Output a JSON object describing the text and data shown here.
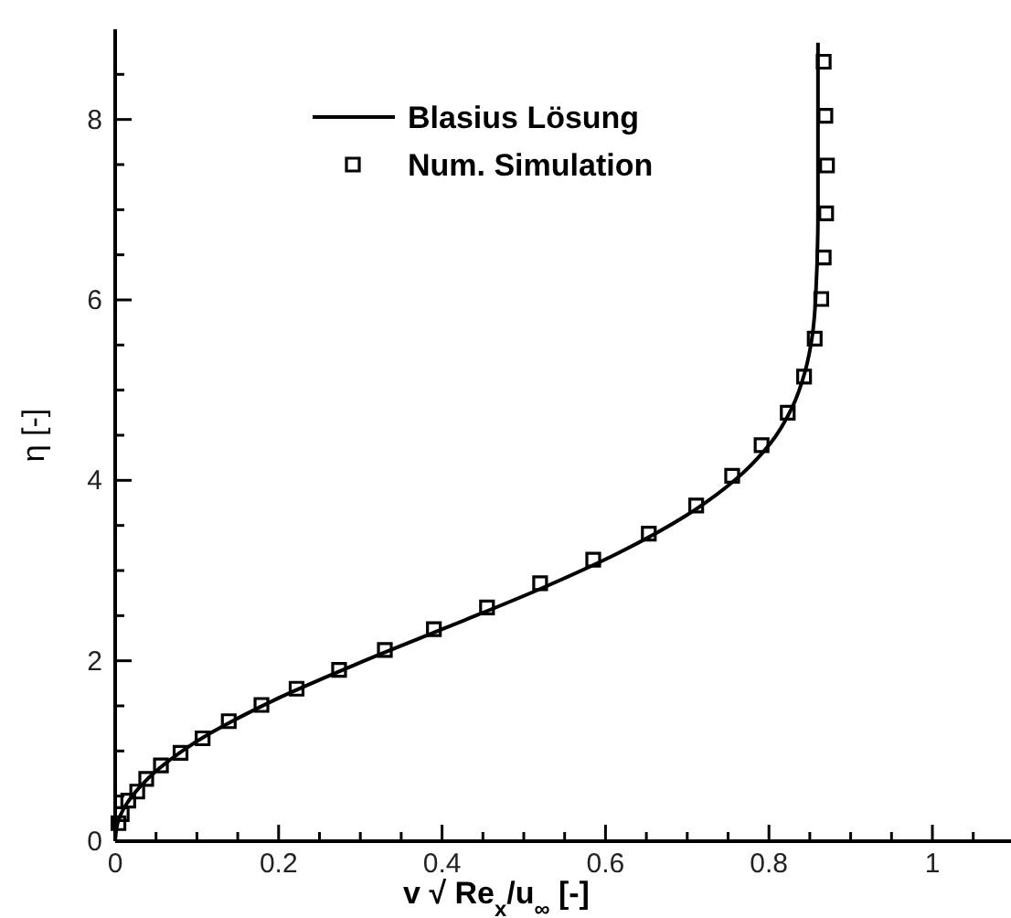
{
  "chart_data": {
    "type": "line",
    "xlabel": "v √ Re$_{x}$/u$_{∞}$ [-]",
    "ylabel": "η [-]",
    "xlim": [
      0,
      1.1
    ],
    "ylim": [
      0,
      9
    ],
    "xticks": [
      0,
      {
        "value": 0.05,
        "label": null
      },
      {
        "value": 0.1,
        "label": null
      },
      {
        "value": 0.15,
        "label": null
      },
      0.2,
      {
        "value": 0.25,
        "label": null
      },
      {
        "value": 0.3,
        "label": null
      },
      {
        "value": 0.35,
        "label": null
      },
      0.4,
      {
        "value": 0.45,
        "label": null
      },
      {
        "value": 0.5,
        "label": null
      },
      {
        "value": 0.55,
        "label": null
      },
      0.6,
      {
        "value": 0.65,
        "label": null
      },
      {
        "value": 0.7,
        "label": null
      },
      {
        "value": 0.75,
        "label": null
      },
      0.8,
      {
        "value": 0.85,
        "label": null
      },
      {
        "value": 0.9,
        "label": null
      },
      {
        "value": 0.95,
        "label": null
      },
      1,
      {
        "value": 1.05,
        "label": null
      }
    ],
    "yticks": [
      0,
      {
        "value": 0.5,
        "label": null
      },
      {
        "value": 1,
        "label": null
      },
      {
        "value": 1.5,
        "label": null
      },
      2,
      {
        "value": 2.5,
        "label": null
      },
      {
        "value": 3,
        "label": null
      },
      {
        "value": 3.5,
        "label": null
      },
      4,
      {
        "value": 4.5,
        "label": null
      },
      {
        "value": 5,
        "label": null
      },
      {
        "value": 5.5,
        "label": null
      },
      6,
      {
        "value": 6.5,
        "label": null
      },
      {
        "value": 7,
        "label": null
      },
      {
        "value": 7.5,
        "label": null
      },
      8,
      {
        "value": 8.5,
        "label": null
      }
    ],
    "grid": false,
    "legend": "top left",
    "series": [
      {
        "name": "Blasius Lösung",
        "color": "#000000",
        "marker": "none",
        "line_style": "solid",
        "x": [
          0,
          0.003,
          0.013,
          0.03,
          0.053,
          0.082,
          0.117,
          0.158,
          0.203,
          0.253,
          0.305,
          0.414,
          0.521,
          0.617,
          0.697,
          0.758,
          0.801,
          0.828,
          0.844,
          0.853,
          0.857,
          0.86,
          0.86
        ],
        "values": [
          0,
          0.2,
          0.4,
          0.6,
          0.8,
          1.0,
          1.2,
          1.4,
          1.6,
          1.8,
          2.0,
          2.4,
          2.8,
          3.2,
          3.6,
          4.0,
          4.4,
          4.8,
          5.2,
          5.6,
          6.0,
          7.0,
          8.85
        ]
      },
      {
        "name": "Num. Simulation",
        "type": "scatter",
        "color": "#000000",
        "marker": "square",
        "x": [
          0.004,
          0.008,
          0.016,
          0.027,
          0.038,
          0.056,
          0.08,
          0.107,
          0.139,
          0.179,
          0.222,
          0.274,
          0.33,
          0.39,
          0.455,
          0.52,
          0.585,
          0.653,
          0.711,
          0.755,
          0.791,
          0.823,
          0.843,
          0.856,
          0.864,
          0.867,
          0.87,
          0.871,
          0.869,
          0.867
        ],
        "values": [
          0.2,
          0.3,
          0.45,
          0.55,
          0.69,
          0.84,
          0.98,
          1.14,
          1.33,
          1.51,
          1.69,
          1.9,
          2.12,
          2.35,
          2.59,
          2.86,
          3.12,
          3.41,
          3.72,
          4.05,
          4.39,
          4.75,
          5.15,
          5.57,
          6.01,
          6.47,
          6.96,
          7.49,
          8.04,
          8.64
        ]
      }
    ]
  }
}
